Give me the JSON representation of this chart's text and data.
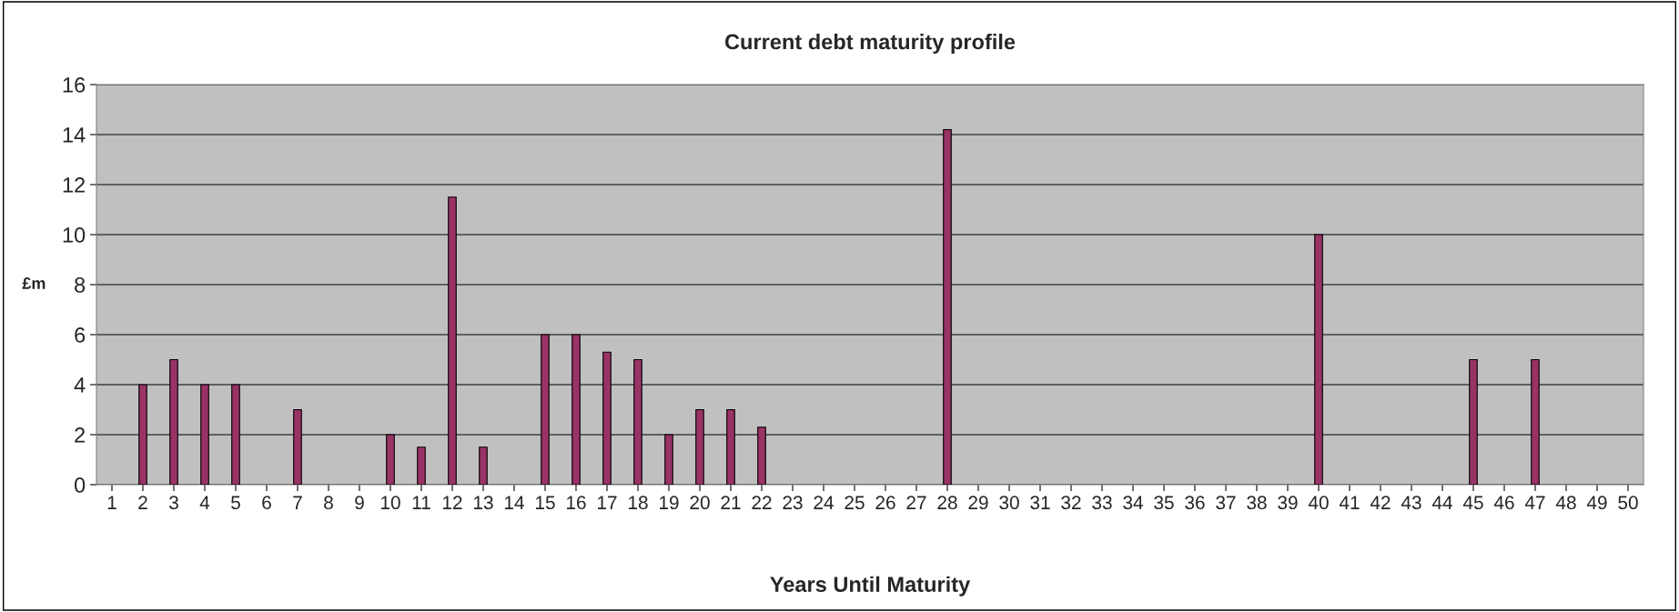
{
  "chart_data": {
    "type": "bar",
    "title": "Current debt maturity profile",
    "xlabel": "Years Until Maturity",
    "ylabel": "£m",
    "categories": [
      "1",
      "2",
      "3",
      "4",
      "5",
      "6",
      "7",
      "8",
      "9",
      "10",
      "11",
      "12",
      "13",
      "14",
      "15",
      "16",
      "17",
      "18",
      "19",
      "20",
      "21",
      "22",
      "23",
      "24",
      "25",
      "26",
      "27",
      "28",
      "29",
      "30",
      "31",
      "32",
      "33",
      "34",
      "35",
      "36",
      "37",
      "38",
      "39",
      "40",
      "41",
      "42",
      "43",
      "44",
      "45",
      "46",
      "47",
      "48",
      "49",
      "50"
    ],
    "values": [
      null,
      4,
      5,
      4,
      4,
      null,
      3,
      null,
      null,
      2,
      1.5,
      11.5,
      1.5,
      null,
      6,
      6,
      5.3,
      5,
      2,
      3,
      3,
      2.3,
      null,
      null,
      null,
      null,
      null,
      14.2,
      null,
      null,
      null,
      null,
      null,
      null,
      null,
      null,
      null,
      null,
      null,
      10,
      null,
      null,
      null,
      null,
      5,
      null,
      5,
      null,
      null,
      null
    ],
    "color": "#993366",
    "ylim": [
      0,
      16
    ],
    "yticks": [
      0,
      2,
      4,
      6,
      8,
      10,
      12,
      14,
      16
    ],
    "grid": "y",
    "legend": false
  }
}
